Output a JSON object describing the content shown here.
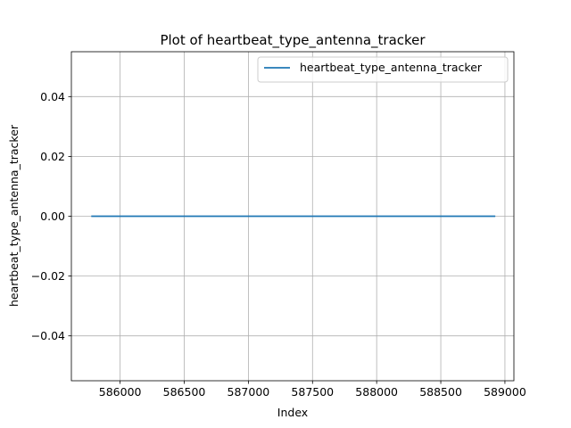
{
  "chart_data": {
    "type": "line",
    "title": "Plot of heartbeat_type_antenna_tracker",
    "xlabel": "Index",
    "ylabel": "heartbeat_type_antenna_tracker",
    "xlim": [
      585620,
      589070
    ],
    "ylim": [
      -0.055,
      0.055
    ],
    "x_ticks": [
      586000,
      586500,
      587000,
      587500,
      588000,
      588500,
      589000
    ],
    "x_tick_labels": [
      "586000",
      "586500",
      "587000",
      "587500",
      "588000",
      "588500",
      "589000"
    ],
    "y_ticks": [
      -0.04,
      -0.02,
      0.0,
      0.02,
      0.04
    ],
    "y_tick_labels": [
      "−0.04",
      "−0.02",
      "0.00",
      "0.02",
      "0.04"
    ],
    "grid": true,
    "legend_position": "top-right",
    "series": [
      {
        "name": "heartbeat_type_antenna_tracker",
        "color": "#1f77b4",
        "x": [
          585775,
          588925
        ],
        "y": [
          0,
          0
        ]
      }
    ]
  }
}
